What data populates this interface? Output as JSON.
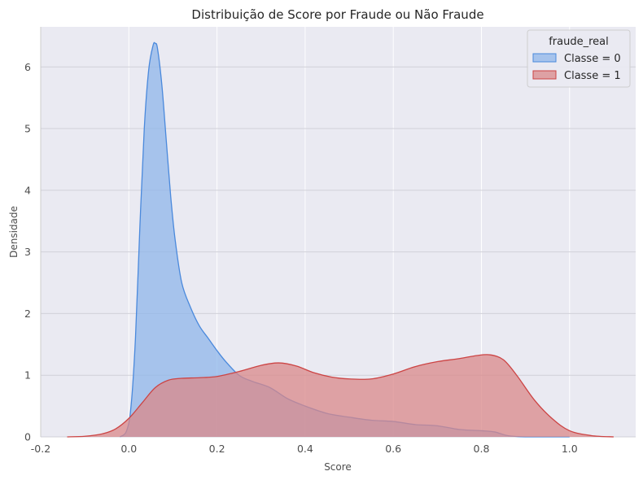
{
  "chart_data": {
    "type": "area",
    "title": "Distribuição de Score por Fraude ou Não Fraude",
    "xlabel": "Score",
    "ylabel": "Densidade",
    "xlim": [
      -0.2,
      1.15
    ],
    "ylim": [
      0,
      6.65
    ],
    "xticks": [
      "-0.2",
      "0.0",
      "0.2",
      "0.4",
      "0.6",
      "0.8",
      "1.0"
    ],
    "xtick_values": [
      -0.2,
      0.0,
      0.2,
      0.4,
      0.6,
      0.8,
      1.0
    ],
    "yticks": [
      "0",
      "1",
      "2",
      "3",
      "4",
      "5",
      "6"
    ],
    "ytick_values": [
      0,
      1,
      2,
      3,
      4,
      5,
      6
    ],
    "grid": true,
    "legend": {
      "title": "fraude_real",
      "position": "top-right"
    },
    "series": [
      {
        "name": "Classe = 0",
        "color": "#4a89dc",
        "fill": "#8fb6ea",
        "x": [
          -0.02,
          -0.005,
          0.005,
          0.015,
          0.025,
          0.035,
          0.045,
          0.055,
          0.06,
          0.065,
          0.075,
          0.085,
          0.095,
          0.105,
          0.12,
          0.14,
          0.16,
          0.18,
          0.2,
          0.22,
          0.25,
          0.28,
          0.32,
          0.36,
          0.4,
          0.45,
          0.5,
          0.55,
          0.6,
          0.65,
          0.7,
          0.75,
          0.8,
          0.83,
          0.86,
          0.9,
          0.95,
          1.0
        ],
        "y": [
          0,
          0.1,
          0.5,
          1.6,
          3.4,
          5.0,
          5.95,
          6.35,
          6.38,
          6.3,
          5.7,
          4.8,
          3.9,
          3.2,
          2.5,
          2.1,
          1.8,
          1.6,
          1.4,
          1.22,
          1.0,
          0.9,
          0.8,
          0.62,
          0.5,
          0.38,
          0.32,
          0.27,
          0.25,
          0.2,
          0.18,
          0.12,
          0.1,
          0.08,
          0.02,
          0,
          0,
          0
        ]
      },
      {
        "name": "Classe = 1",
        "color": "#cc4444",
        "fill": "#d9888a",
        "x": [
          -0.14,
          -0.1,
          -0.06,
          -0.03,
          0.0,
          0.03,
          0.06,
          0.09,
          0.12,
          0.16,
          0.2,
          0.25,
          0.3,
          0.34,
          0.38,
          0.42,
          0.46,
          0.5,
          0.55,
          0.6,
          0.65,
          0.7,
          0.75,
          0.79,
          0.82,
          0.85,
          0.88,
          0.92,
          0.96,
          1.0,
          1.05,
          1.1
        ],
        "y": [
          0,
          0.01,
          0.05,
          0.13,
          0.3,
          0.55,
          0.8,
          0.92,
          0.95,
          0.96,
          0.98,
          1.06,
          1.16,
          1.2,
          1.15,
          1.04,
          0.97,
          0.94,
          0.94,
          1.02,
          1.14,
          1.22,
          1.27,
          1.32,
          1.33,
          1.25,
          1.0,
          0.6,
          0.3,
          0.1,
          0.02,
          0
        ]
      }
    ]
  }
}
